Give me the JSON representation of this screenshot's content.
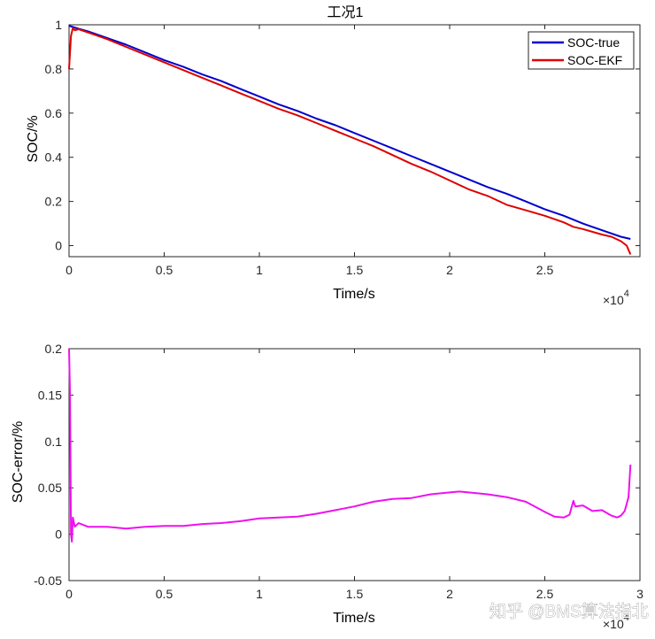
{
  "chart_data": [
    {
      "type": "line",
      "title": "工况1",
      "xlabel": "Time/s",
      "ylabel": "SOC/%",
      "xlim": [
        0,
        3
      ],
      "ylim": [
        -0.05,
        1
      ],
      "x_multiplier": "×10",
      "x_exponent": "4",
      "x_ticks": [
        "0",
        "0.5",
        "1",
        "1.5",
        "2",
        "2.5"
      ],
      "y_ticks": [
        "0",
        "0.2",
        "0.4",
        "0.6",
        "0.8",
        "1"
      ],
      "legend_position": "top-right",
      "series": [
        {
          "name": "SOC-true",
          "color": "#0000cc",
          "x": [
            0,
            0.02,
            0.05,
            0.1,
            0.2,
            0.3,
            0.4,
            0.5,
            0.6,
            0.7,
            0.8,
            0.9,
            1.0,
            1.1,
            1.2,
            1.3,
            1.4,
            1.5,
            1.6,
            1.7,
            1.8,
            1.9,
            2.0,
            2.1,
            2.2,
            2.3,
            2.4,
            2.5,
            2.6,
            2.7,
            2.8,
            2.9,
            2.95
          ],
          "y": [
            0.995,
            0.99,
            0.982,
            0.97,
            0.94,
            0.91,
            0.875,
            0.84,
            0.81,
            0.775,
            0.745,
            0.71,
            0.675,
            0.64,
            0.61,
            0.575,
            0.545,
            0.51,
            0.475,
            0.44,
            0.405,
            0.37,
            0.335,
            0.3,
            0.265,
            0.235,
            0.2,
            0.165,
            0.135,
            0.1,
            0.07,
            0.04,
            0.03
          ]
        },
        {
          "name": "SOC-EKF",
          "color": "#dd0000",
          "x": [
            0,
            0.01,
            0.02,
            0.03,
            0.05,
            0.1,
            0.2,
            0.3,
            0.4,
            0.5,
            0.6,
            0.7,
            0.8,
            0.9,
            1.0,
            1.1,
            1.2,
            1.3,
            1.4,
            1.5,
            1.6,
            1.7,
            1.8,
            1.9,
            2.0,
            2.1,
            2.2,
            2.3,
            2.4,
            2.5,
            2.6,
            2.65,
            2.7,
            2.8,
            2.85,
            2.9,
            2.93,
            2.95
          ],
          "y": [
            0.8,
            0.95,
            0.985,
            0.975,
            0.98,
            0.965,
            0.935,
            0.9,
            0.865,
            0.83,
            0.795,
            0.76,
            0.725,
            0.69,
            0.655,
            0.62,
            0.59,
            0.555,
            0.52,
            0.485,
            0.45,
            0.41,
            0.37,
            0.335,
            0.295,
            0.255,
            0.225,
            0.185,
            0.16,
            0.135,
            0.105,
            0.085,
            0.075,
            0.05,
            0.04,
            0.02,
            0.0,
            -0.04
          ]
        }
      ]
    },
    {
      "type": "line",
      "title": "",
      "xlabel": "Time/s",
      "ylabel": "SOC-error/%",
      "xlim": [
        0,
        3
      ],
      "ylim": [
        -0.05,
        0.2
      ],
      "x_multiplier": "×10",
      "x_exponent": "4",
      "x_ticks": [
        "0",
        "0.5",
        "1",
        "1.5",
        "2",
        "2.5",
        "3"
      ],
      "y_ticks": [
        "-0.05",
        "0",
        "0.05",
        "0.1",
        "0.15",
        "0.2"
      ],
      "series": [
        {
          "name": "SOC-error",
          "color": "#ee11ee",
          "x": [
            0,
            0.005,
            0.01,
            0.015,
            0.02,
            0.03,
            0.05,
            0.1,
            0.2,
            0.3,
            0.4,
            0.5,
            0.6,
            0.7,
            0.8,
            0.9,
            1.0,
            1.1,
            1.2,
            1.3,
            1.4,
            1.5,
            1.6,
            1.7,
            1.8,
            1.9,
            2.0,
            2.05,
            2.1,
            2.2,
            2.3,
            2.4,
            2.5,
            2.55,
            2.6,
            2.63,
            2.65,
            2.66,
            2.7,
            2.75,
            2.8,
            2.85,
            2.88,
            2.9,
            2.92,
            2.94,
            2.95
          ],
          "y": [
            0.2,
            0.15,
            0.0,
            -0.008,
            0.018,
            0.008,
            0.012,
            0.008,
            0.008,
            0.006,
            0.008,
            0.009,
            0.009,
            0.011,
            0.012,
            0.014,
            0.017,
            0.018,
            0.019,
            0.022,
            0.026,
            0.03,
            0.035,
            0.038,
            0.039,
            0.043,
            0.045,
            0.046,
            0.045,
            0.043,
            0.04,
            0.035,
            0.024,
            0.019,
            0.018,
            0.021,
            0.036,
            0.03,
            0.031,
            0.025,
            0.026,
            0.02,
            0.018,
            0.02,
            0.025,
            0.04,
            0.075
          ]
        }
      ]
    }
  ],
  "watermark": {
    "text": "知乎 @BMS算法指北"
  }
}
